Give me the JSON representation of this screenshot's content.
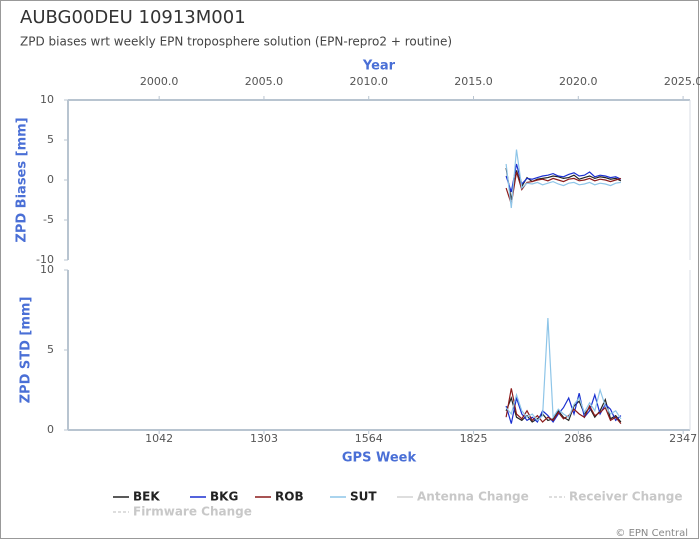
{
  "title": "AUBG00DEU 10913M001",
  "subtitle": "ZPD biases wrt weekly EPN troposphere solution (EPN-repro2 + routine)",
  "footer": "© EPN Central",
  "events": [
    {
      "name": "Antenna Change",
      "color": "#d3d3d3"
    },
    {
      "name": "Receiver Change",
      "color": "#d3d3d3"
    },
    {
      "name": "Firmware Change",
      "color": "#d3d3d3"
    }
  ],
  "chart_data": [
    {
      "type": "line",
      "ylabel": "ZPD Biases [mm]",
      "x2label": "Year",
      "x2lim": [
        1995.65,
        2025.33
      ],
      "x2ticks": [
        {
          "value": 2000,
          "label": "2000.0"
        },
        {
          "value": 2005,
          "label": "2005.0"
        },
        {
          "value": 2010,
          "label": "2010.0"
        },
        {
          "value": 2015,
          "label": "2015.0"
        },
        {
          "value": 2020,
          "label": "2020.0"
        },
        {
          "value": 2025,
          "label": "2025.0"
        }
      ],
      "xlim": [
        815,
        2364
      ],
      "ylim": [
        -10,
        10
      ],
      "yticks": [
        10,
        5,
        0,
        -5,
        -10
      ],
      "x": [
        1906,
        1919,
        1932,
        1945,
        1958,
        1971,
        1984,
        1997,
        2010,
        2023,
        2036,
        2049,
        2062,
        2075,
        2088,
        2101,
        2114,
        2127,
        2140,
        2153,
        2166,
        2179,
        2192
      ],
      "series": [
        {
          "name": "BEK",
          "color": "#222222",
          "values": [
            1.5,
            -2.5,
            1.2,
            -0.8,
            0.3,
            -0.2,
            0.1,
            0.2,
            0.3,
            0.5,
            0.4,
            0.2,
            0.3,
            0.6,
            0.1,
            0.3,
            0.5,
            0.2,
            0.4,
            0.3,
            0.1,
            0.2,
            -0.1
          ]
        },
        {
          "name": "BKG",
          "color": "#1a2fd0",
          "values": [
            0.5,
            -1.5,
            2.0,
            -0.5,
            0.2,
            0.1,
            0.3,
            0.5,
            0.6,
            0.8,
            0.5,
            0.4,
            0.7,
            0.9,
            0.5,
            0.6,
            1.0,
            0.4,
            0.6,
            0.5,
            0.3,
            0.4,
            0.1
          ]
        },
        {
          "name": "ROB",
          "color": "#8b1a1a",
          "values": [
            -1.0,
            -3.0,
            1.0,
            -1.2,
            -0.3,
            -0.2,
            0.0,
            0.1,
            -0.1,
            0.2,
            0.0,
            -0.2,
            0.1,
            0.2,
            -0.1,
            0.0,
            0.2,
            -0.1,
            0.1,
            0.0,
            -0.2,
            0.0,
            0.2
          ]
        },
        {
          "name": "SUT",
          "color": "#8ec5e8",
          "values": [
            2.0,
            -3.5,
            3.8,
            -1.0,
            -0.4,
            -0.5,
            -0.3,
            -0.6,
            -0.4,
            -0.2,
            -0.5,
            -0.7,
            -0.4,
            -0.3,
            -0.6,
            -0.5,
            -0.3,
            -0.6,
            -0.4,
            -0.5,
            -0.7,
            -0.4,
            -0.3
          ]
        }
      ]
    },
    {
      "type": "line",
      "ylabel": "ZPD STD [mm]",
      "xlabel": "GPS Week",
      "xlim": [
        815,
        2364
      ],
      "xticks": [
        1042,
        1303,
        1564,
        1825,
        2086,
        2347
      ],
      "ylim": [
        0,
        10
      ],
      "yticks": [
        0,
        5,
        10
      ],
      "x": [
        1906,
        1919,
        1932,
        1945,
        1958,
        1971,
        1984,
        1997,
        2010,
        2023,
        2036,
        2049,
        2062,
        2075,
        2088,
        2101,
        2114,
        2127,
        2140,
        2153,
        2166,
        2179,
        2192
      ],
      "series": [
        {
          "color": "#222222",
          "values": [
            1.2,
            2.0,
            0.8,
            0.6,
            0.9,
            0.5,
            0.7,
            1.0,
            0.6,
            0.7,
            1.2,
            0.8,
            0.6,
            1.5,
            1.8,
            1.0,
            1.4,
            0.8,
            1.2,
            1.9,
            0.7,
            0.9,
            0.5
          ]
        },
        {
          "color": "#1a2fd0",
          "values": [
            1.5,
            0.4,
            2.0,
            1.0,
            0.6,
            0.8,
            0.5,
            1.2,
            0.9,
            0.5,
            1.0,
            1.4,
            2.0,
            1.0,
            2.3,
            0.8,
            1.2,
            2.2,
            1.0,
            1.6,
            1.3,
            0.6,
            0.9
          ]
        },
        {
          "color": "#8b1a1a",
          "values": [
            0.8,
            2.6,
            1.0,
            0.7,
            1.2,
            0.6,
            0.9,
            0.5,
            0.8,
            0.6,
            1.1,
            0.7,
            0.9,
            1.3,
            1.0,
            0.8,
            1.5,
            0.9,
            1.1,
            1.4,
            0.6,
            0.8,
            0.4
          ]
        },
        {
          "color": "#8ec5e8",
          "values": [
            1.4,
            1.0,
            2.2,
            1.2,
            0.8,
            1.0,
            0.6,
            0.9,
            7.0,
            0.8,
            1.3,
            1.0,
            0.8,
            1.6,
            2.0,
            1.1,
            1.7,
            1.2,
            2.5,
            1.5,
            1.0,
            1.2,
            0.7
          ]
        }
      ]
    }
  ]
}
